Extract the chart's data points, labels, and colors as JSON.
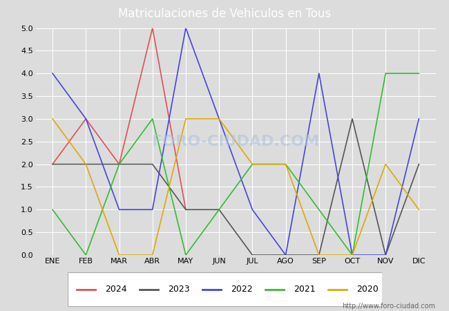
{
  "title": "Matriculaciones de Vehiculos en Tous",
  "months": [
    "ENE",
    "FEB",
    "MAR",
    "ABR",
    "MAY",
    "JUN",
    "JUL",
    "AGO",
    "SEP",
    "OCT",
    "NOV",
    "DIC"
  ],
  "series": {
    "2024": [
      2,
      3,
      2,
      5,
      1,
      null,
      null,
      null,
      null,
      null,
      null,
      null
    ],
    "2023": [
      2,
      2,
      2,
      2,
      1,
      1,
      0,
      0,
      0,
      3,
      0,
      2
    ],
    "2022": [
      4,
      3,
      1,
      1,
      5,
      3,
      1,
      0,
      4,
      0,
      0,
      3
    ],
    "2021": [
      1,
      0,
      2,
      3,
      0,
      1,
      2,
      2,
      1,
      0,
      4,
      4
    ],
    "2020": [
      3,
      2,
      0,
      0,
      3,
      3,
      2,
      2,
      0,
      0,
      2,
      1
    ]
  },
  "colors": {
    "2024": "#e05050",
    "2023": "#555555",
    "2022": "#4444dd",
    "2021": "#33bb33",
    "2020": "#ddaa00"
  },
  "ylim": [
    0,
    5.0
  ],
  "yticks": [
    0.0,
    0.5,
    1.0,
    1.5,
    2.0,
    2.5,
    3.0,
    3.5,
    4.0,
    4.5,
    5.0
  ],
  "title_bg_color": "#5588cc",
  "title_text_color": "#ffffff",
  "plot_bg_color": "#dcdcdc",
  "fig_bg_color": "#dcdcdc",
  "grid_color": "#ffffff",
  "url": "http://www.foro-ciudad.com",
  "watermark": "FORO-CIUDAD.COM",
  "legend_order": [
    "2024",
    "2023",
    "2022",
    "2021",
    "2020"
  ]
}
